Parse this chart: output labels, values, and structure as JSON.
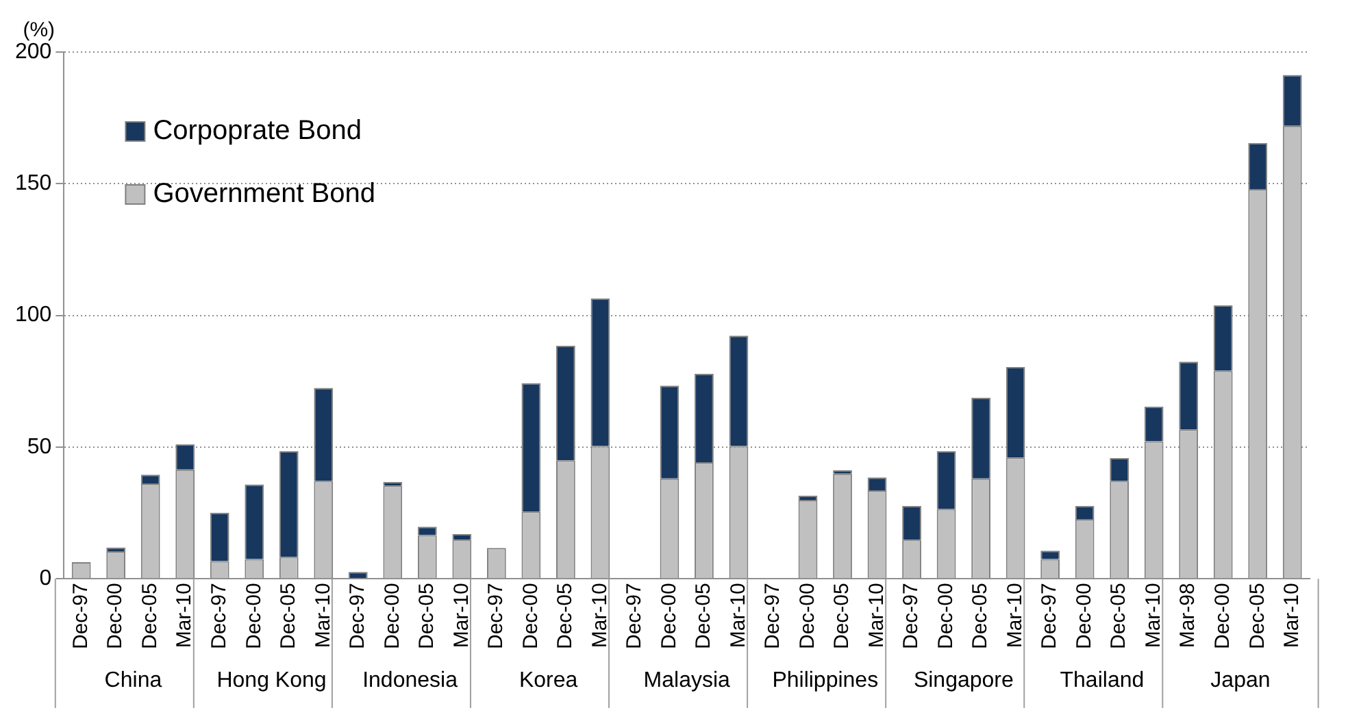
{
  "chart_data": {
    "type": "bar",
    "stacked": true,
    "ylabel": "(%)",
    "categories": [
      "Dec-97",
      "Dec-00",
      "Dec-05",
      "Mar-10",
      "Dec-97",
      "Dec-00",
      "Dec-05",
      "Mar-10",
      "Dec-97",
      "Dec-00",
      "Dec-05",
      "Mar-10",
      "Dec-97",
      "Dec-00",
      "Dec-05",
      "Mar-10",
      "Dec-97",
      "Dec-00",
      "Dec-05",
      "Mar-10",
      "Dec-97",
      "Dec-00",
      "Dec-05",
      "Mar-10",
      "Dec-97",
      "Dec-00",
      "Dec-05",
      "Mar-10",
      "Dec-97",
      "Dec-00",
      "Dec-05",
      "Mar-10",
      "Mar-98",
      "Dec-00",
      "Dec-05",
      "Mar-10"
    ],
    "series": [
      {
        "name": "Government Bond",
        "color": "#c0c0c0",
        "values": [
          6.3,
          10.5,
          36.2,
          41.5,
          6.7,
          7.5,
          8.3,
          37.2,
          null,
          35.4,
          16.6,
          14.8,
          11.7,
          25.5,
          45,
          50.4,
          null,
          38.1,
          44.3,
          50.4,
          null,
          30,
          39.9,
          33.6,
          14.8,
          26.5,
          38.1,
          46,
          7.5,
          22.7,
          37.2,
          52.2,
          56.7,
          79,
          148,
          172
        ]
      },
      {
        "name": "Corpoprate Bond",
        "color": "#17375e",
        "values": [
          null,
          1.4,
          3.3,
          9.5,
          18.4,
          28.3,
          40.1,
          35.3,
          2.6,
          1.4,
          3.2,
          2.2,
          null,
          48.8,
          43.5,
          56.1,
          null,
          35.2,
          33.6,
          41.9,
          null,
          1.6,
          1.4,
          4.9,
          12.9,
          21.9,
          30.7,
          34.4,
          3.2,
          5,
          8.6,
          13.2,
          25.7,
          24.8,
          17.4,
          19.3
        ]
      }
    ],
    "annotations": [
      "China",
      "Hong Kong",
      "Indonesia",
      "Korea",
      "Malaysia",
      "Philippines",
      "Singapore",
      "Thailand",
      "Japan"
    ],
    "ylim": [
      0,
      200
    ],
    "yticks": [
      0,
      50,
      100,
      150,
      200
    ],
    "grid": "y",
    "legend": "top left"
  }
}
